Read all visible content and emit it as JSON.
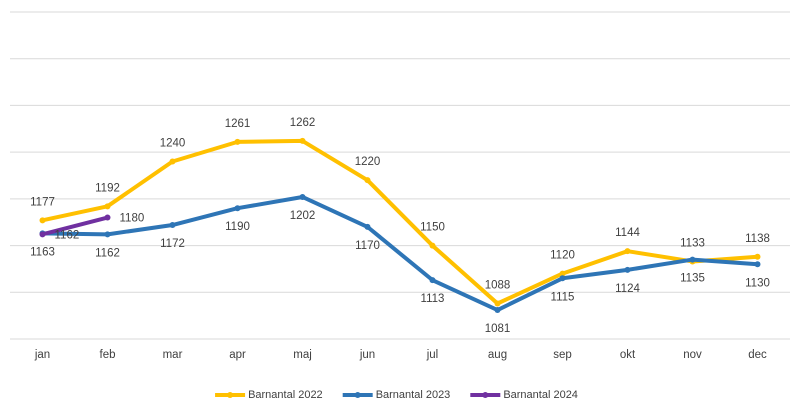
{
  "chart_data": {
    "type": "line",
    "categories": [
      "jan",
      "feb",
      "mar",
      "apr",
      "maj",
      "jun",
      "jul",
      "aug",
      "sep",
      "okt",
      "nov",
      "dec"
    ],
    "series": [
      {
        "name": "Barnantal 2022",
        "color": "#FFC000",
        "values": [
          1177,
          1192,
          1240,
          1261,
          1262,
          1220,
          1150,
          1088,
          1120,
          1144,
          1133,
          1138
        ]
      },
      {
        "name": "Barnantal 2023",
        "color": "#2E75B6",
        "values": [
          1163,
          1162,
          1172,
          1190,
          1202,
          1170,
          1113,
          1081,
          1115,
          1124,
          1135,
          1130
        ]
      },
      {
        "name": "Barnantal 2024",
        "color": "#7030A0",
        "values": [
          1162,
          1180,
          null,
          null,
          null,
          null,
          null,
          null,
          null,
          null,
          null,
          null
        ]
      }
    ],
    "ylim": [
      1050,
      1400
    ],
    "yticks": [
      1050,
      1100,
      1150,
      1200,
      1250,
      1300,
      1350,
      1400
    ],
    "grid": true,
    "legend": "bottom"
  }
}
